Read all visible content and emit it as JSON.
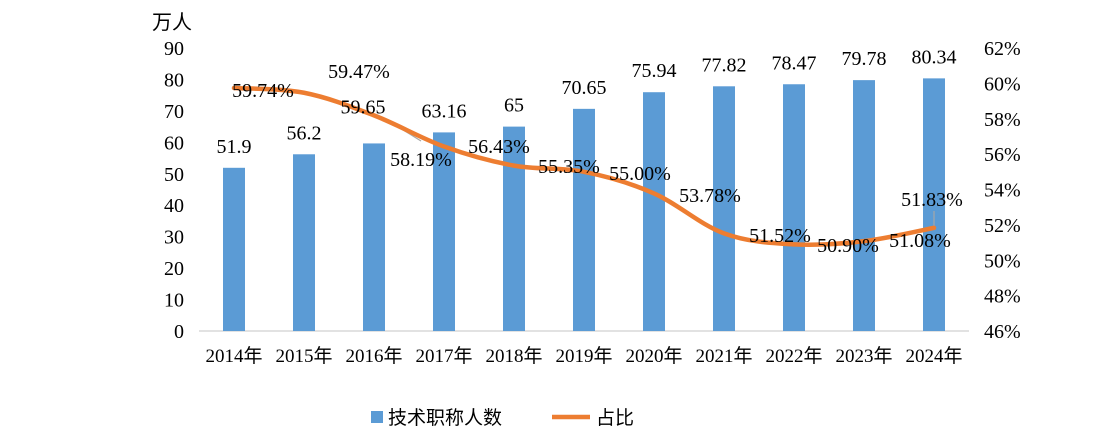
{
  "chart_data": {
    "type": "bar+line",
    "categories": [
      "2014年",
      "2015年",
      "2016年",
      "2017年",
      "2018年",
      "2019年",
      "2020年",
      "2021年",
      "2022年",
      "2023年",
      "2024年"
    ],
    "left_axis": {
      "unit_label": "万人",
      "range": [
        0,
        90
      ],
      "ticks": [
        "0",
        "10",
        "20",
        "30",
        "40",
        "50",
        "60",
        "70",
        "80",
        "90"
      ]
    },
    "right_axis": {
      "range": [
        46,
        62
      ],
      "ticks": [
        "46%",
        "48%",
        "50%",
        "52%",
        "54%",
        "56%",
        "58%",
        "60%",
        "62%"
      ]
    },
    "series": [
      {
        "name": "技术职称人数",
        "type": "bar",
        "color": "#5B9BD5",
        "values": [
          51.9,
          56.2,
          59.65,
          63.16,
          65,
          70.65,
          75.94,
          77.82,
          78.47,
          79.78,
          80.34
        ],
        "labels": [
          "51.9",
          "56.2",
          "59.65",
          "63.16",
          "65",
          "70.65",
          "75.94",
          "77.82",
          "78.47",
          "79.78",
          "80.34"
        ]
      },
      {
        "name": "占比",
        "type": "line",
        "axis": "right",
        "color": "#ED7D31",
        "values": [
          59.74,
          59.47,
          58.19,
          56.43,
          55.35,
          55.0,
          53.78,
          51.52,
          50.9,
          51.08,
          51.83
        ],
        "labels": [
          "59.74%",
          "59.47%",
          "58.19%",
          "56.43%",
          "55.35%",
          "55.00%",
          "53.78%",
          "51.52%",
          "50.90%",
          "51.08%",
          "51.83%"
        ]
      }
    ],
    "legend": {
      "position": "bottom",
      "items": [
        "技术职称人数",
        "占比"
      ]
    },
    "grid": false
  }
}
